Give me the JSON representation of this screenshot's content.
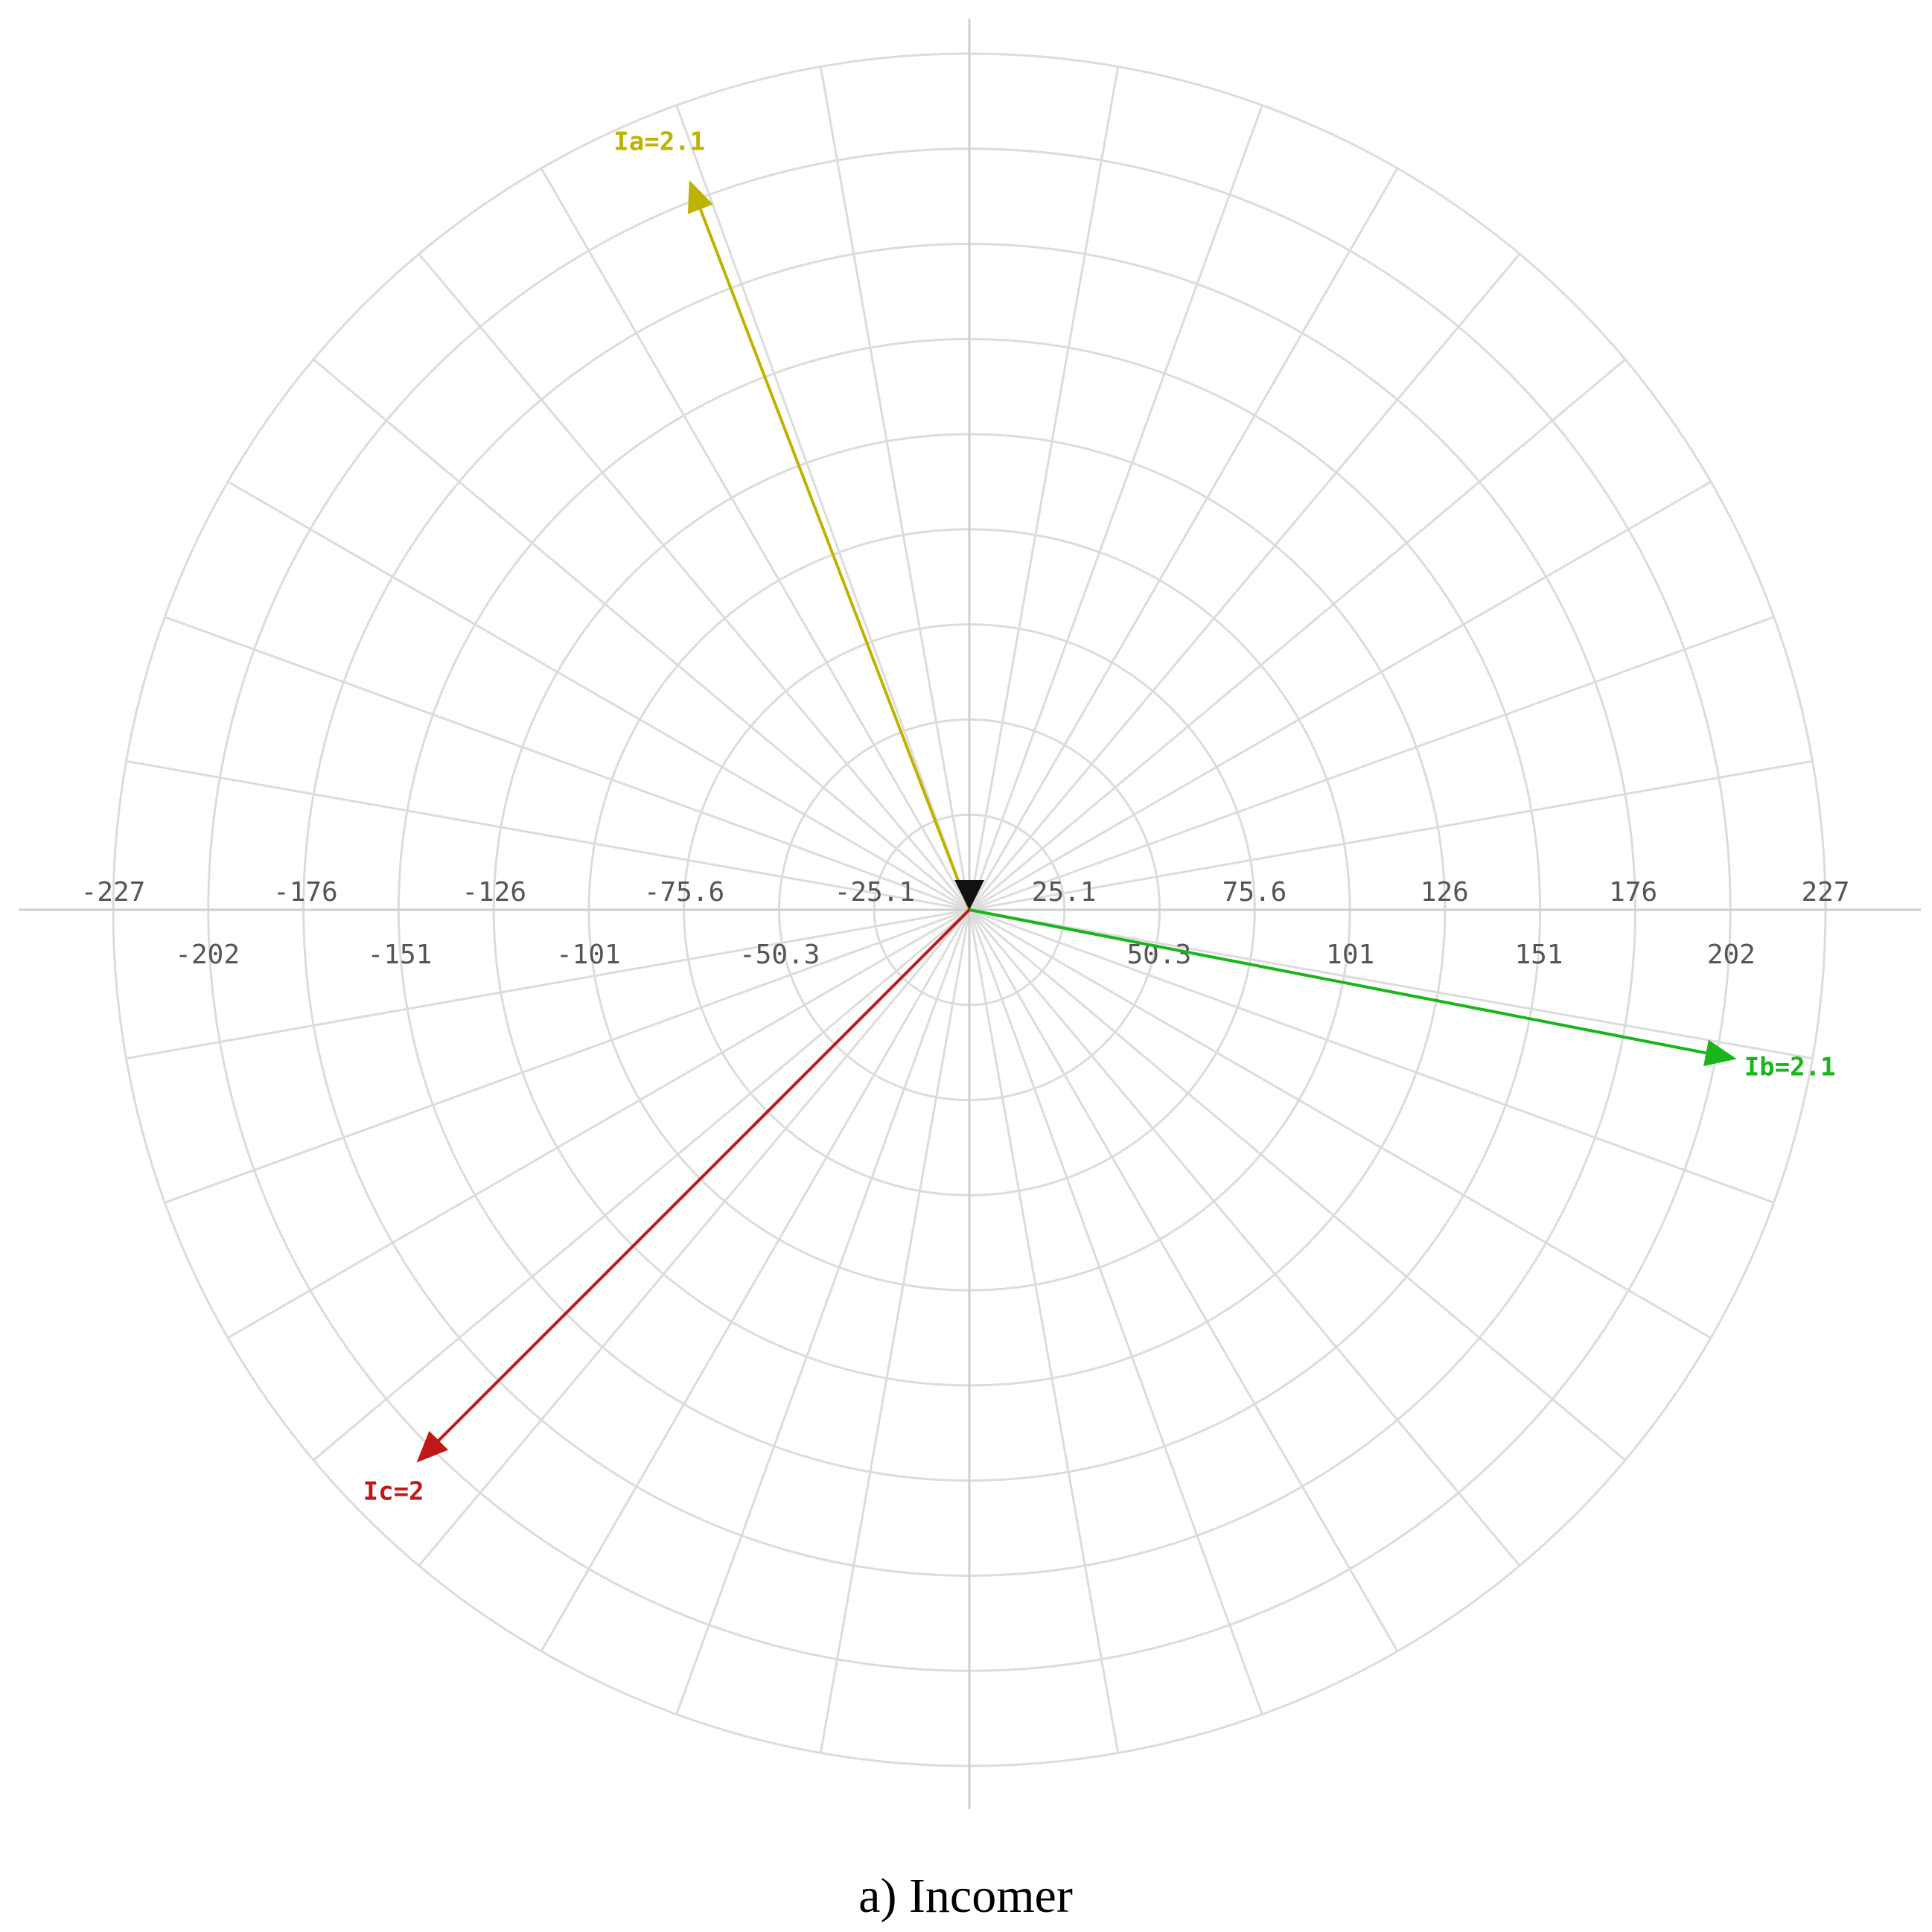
{
  "chart_data": {
    "type": "polar-phasor",
    "caption": "a) Incomer",
    "ring_labels_upper": [
      "-227",
      "-176",
      "-126",
      "-75.6",
      "-25.1",
      "25.1",
      "75.6",
      "126",
      "176",
      "227"
    ],
    "ring_values_upper": [
      -227,
      -176,
      -126,
      -75.6,
      -25.1,
      25.1,
      75.6,
      126,
      176,
      227
    ],
    "ring_labels_lower": [
      "-202",
      "-151",
      "-101",
      "-50.3",
      "50.3",
      "101",
      "151",
      "202"
    ],
    "ring_values_lower": [
      -202,
      -151,
      -101,
      -50.3,
      50.3,
      101,
      151,
      202
    ],
    "angular_divisions": 36,
    "radial_max": 227,
    "grid": true,
    "phasors": [
      {
        "label": "Ia=2.1",
        "magnitude": 2.1,
        "angle_deg": 111,
        "color": "#bdb300"
      },
      {
        "label": "Ib=2.1",
        "magnitude": 2.1,
        "angle_deg": -11,
        "color": "#1ab51a"
      },
      {
        "label": "Ic=2",
        "magnitude": 2.0,
        "angle_deg": -135,
        "color": "#c01818"
      }
    ]
  }
}
